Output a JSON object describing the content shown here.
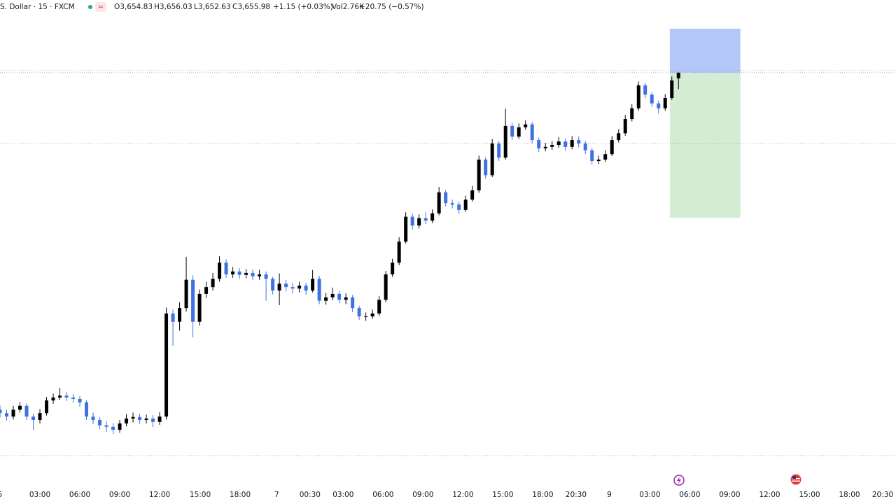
{
  "chart_data": {
    "type": "candlestick",
    "symbol": "S. Dollar · 15 · FXCM",
    "legend": {
      "open": "O3,654.83",
      "high": "H3,656.03",
      "low": "L3,652.63",
      "close": "C3,655.98",
      "change": "+1.15 (+0.03%)",
      "volume": "Vol2.76K",
      "volume_change": "+20.75 (−0.57%)"
    },
    "up_color": "#000000",
    "down_color": "#3f72e0",
    "open": [
      3587.0,
      3586.3,
      3585.6,
      3587.0,
      3587.8,
      3585.6,
      3584.9,
      3586.3,
      3588.9,
      3589.5,
      3589.9,
      3589.5,
      3589.2,
      3588.5,
      3585.6,
      3584.9,
      3583.8,
      3583.5,
      3582.9,
      3584.2,
      3585.2,
      3585.5,
      3584.9,
      3585.2,
      3584.5,
      3585.6,
      3606.7,
      3605.0,
      3607.8,
      3613.6,
      3605.0,
      3610.7,
      3612.1,
      3613.8,
      3617.1,
      3614.7,
      3615.3,
      3614.6,
      3615.0,
      3614.3,
      3614.7,
      3613.8,
      3611.4,
      3612.8,
      3612.1,
      3611.8,
      3612.4,
      3611.4,
      3613.8,
      3609.3,
      3610.0,
      3610.7,
      3609.5,
      3610.0,
      3607.8,
      3606.1,
      3606.1,
      3606.7,
      3609.5,
      3614.7,
      3617.1,
      3621.4,
      3626.5,
      3624.7,
      3626.2,
      3625.7,
      3627.2,
      3631.5,
      3629.3,
      3629.0,
      3627.9,
      3630.0,
      3631.9,
      3638.2,
      3635.0,
      3641.5,
      3638.6,
      3645.1,
      3642.9,
      3644.8,
      3645.4,
      3642.2,
      3640.5,
      3640.8,
      3641.2,
      3641.9,
      3640.8,
      3642.2,
      3641.5,
      3640.1,
      3637.9,
      3638.2,
      3639.3,
      3642.2,
      3643.6,
      3646.5,
      3648.7,
      3653.4,
      3651.5,
      3649.7,
      3648.7,
      3650.8,
      3654.83
    ],
    "high": [
      3587.9,
      3587.0,
      3587.8,
      3588.6,
      3588.3,
      3586.2,
      3587.1,
      3589.6,
      3590.3,
      3591.5,
      3590.6,
      3590.2,
      3589.8,
      3588.9,
      3586.4,
      3585.5,
      3584.6,
      3584.2,
      3584.9,
      3586.1,
      3586.4,
      3586.2,
      3586.0,
      3585.9,
      3586.5,
      3607.9,
      3607.5,
      3609.0,
      3618.3,
      3614.5,
      3611.6,
      3613.2,
      3615.0,
      3618.4,
      3617.8,
      3616.2,
      3616.0,
      3615.8,
      3615.7,
      3615.6,
      3615.3,
      3614.2,
      3614.9,
      3613.6,
      3612.9,
      3613.2,
      3613.0,
      3615.6,
      3614.4,
      3610.9,
      3612.0,
      3611.3,
      3610.8,
      3610.5,
      3608.3,
      3606.9,
      3607.5,
      3610.3,
      3615.4,
      3617.9,
      3622.3,
      3627.4,
      3627.1,
      3627.0,
      3627.4,
      3628.0,
      3632.6,
      3632.0,
      3630.0,
      3629.6,
      3630.8,
      3632.8,
      3639.0,
      3638.7,
      3642.4,
      3642.0,
      3648.6,
      3645.7,
      3645.6,
      3646.2,
      3645.9,
      3642.7,
      3641.6,
      3642.0,
      3642.8,
      3642.5,
      3643.0,
      3642.9,
      3642.0,
      3640.6,
      3639.0,
      3640.1,
      3643.0,
      3644.4,
      3647.3,
      3649.5,
      3654.2,
      3653.9,
      3652.0,
      3650.3,
      3651.6,
      3655.2,
      3656.03
    ],
    "low": [
      3585.4,
      3584.8,
      3585.0,
      3586.4,
      3584.9,
      3582.8,
      3584.2,
      3585.8,
      3588.2,
      3589.0,
      3588.8,
      3588.4,
      3587.6,
      3584.9,
      3584.0,
      3583.0,
      3582.4,
      3582.0,
      3582.3,
      3583.6,
      3584.4,
      3584.1,
      3584.2,
      3583.4,
      3583.9,
      3585.0,
      3600.1,
      3603.2,
      3607.1,
      3601.8,
      3604.2,
      3609.9,
      3611.4,
      3613.2,
      3614.0,
      3614.0,
      3613.8,
      3613.9,
      3613.5,
      3613.6,
      3609.3,
      3610.6,
      3608.4,
      3611.2,
      3610.8,
      3611.0,
      3610.5,
      3611.0,
      3608.6,
      3608.5,
      3609.4,
      3608.8,
      3608.6,
      3607.0,
      3605.4,
      3605.2,
      3605.6,
      3606.2,
      3609.0,
      3614.2,
      3616.6,
      3621.0,
      3623.9,
      3624.1,
      3625.0,
      3625.2,
      3626.8,
      3628.6,
      3628.2,
      3627.1,
      3627.5,
      3629.6,
      3631.4,
      3634.3,
      3634.6,
      3637.9,
      3638.2,
      3642.2,
      3642.4,
      3644.3,
      3641.5,
      3639.8,
      3639.9,
      3640.2,
      3640.6,
      3640.0,
      3640.3,
      3640.7,
      3639.3,
      3637.2,
      3637.3,
      3637.7,
      3638.9,
      3641.7,
      3643.1,
      3646.0,
      3648.2,
      3650.8,
      3649.0,
      3647.6,
      3648.2,
      3650.4,
      3652.63
    ],
    "close": [
      3586.3,
      3585.6,
      3587.0,
      3587.8,
      3585.6,
      3584.9,
      3586.3,
      3588.9,
      3589.5,
      3589.9,
      3589.5,
      3589.2,
      3588.5,
      3585.6,
      3584.9,
      3583.8,
      3583.5,
      3582.9,
      3584.2,
      3585.2,
      3585.5,
      3584.9,
      3585.2,
      3584.5,
      3585.6,
      3606.7,
      3605.0,
      3607.8,
      3613.6,
      3605.0,
      3610.7,
      3612.1,
      3613.8,
      3617.1,
      3614.7,
      3615.3,
      3614.6,
      3615.0,
      3614.3,
      3614.7,
      3613.8,
      3611.4,
      3612.8,
      3612.1,
      3611.8,
      3612.4,
      3611.4,
      3613.8,
      3609.3,
      3610.0,
      3610.7,
      3609.5,
      3610.0,
      3607.8,
      3606.1,
      3606.1,
      3606.7,
      3609.5,
      3614.7,
      3617.1,
      3621.4,
      3626.5,
      3624.7,
      3626.2,
      3625.7,
      3627.2,
      3631.5,
      3629.3,
      3629.0,
      3627.9,
      3630.0,
      3631.9,
      3638.2,
      3635.0,
      3641.5,
      3638.6,
      3645.1,
      3642.9,
      3644.8,
      3645.4,
      3642.2,
      3640.5,
      3640.8,
      3641.2,
      3641.9,
      3640.8,
      3642.2,
      3641.5,
      3640.1,
      3637.9,
      3638.2,
      3639.3,
      3642.2,
      3643.6,
      3646.5,
      3648.7,
      3653.4,
      3651.5,
      3649.7,
      3648.7,
      3650.8,
      3654.4,
      3655.98
    ],
    "ylim": [
      3572,
      3668
    ],
    "xlim": [
      0,
      134.7
    ],
    "xticks": [
      {
        "value": 0,
        "label": "5"
      },
      {
        "value": 6,
        "label": "03:00"
      },
      {
        "value": 12,
        "label": "06:00"
      },
      {
        "value": 18,
        "label": "09:00"
      },
      {
        "value": 24,
        "label": "12:00"
      },
      {
        "value": 30.1,
        "label": "15:00"
      },
      {
        "value": 36.1,
        "label": "18:00"
      },
      {
        "value": 41.6,
        "label": "7"
      },
      {
        "value": 46.6,
        "label": "00:30"
      },
      {
        "value": 51.6,
        "label": "03:00"
      },
      {
        "value": 57.6,
        "label": "06:00"
      },
      {
        "value": 63.6,
        "label": "09:00"
      },
      {
        "value": 69.6,
        "label": "12:00"
      },
      {
        "value": 75.6,
        "label": "15:00"
      },
      {
        "value": 81.6,
        "label": "18:00"
      },
      {
        "value": 86.6,
        "label": "20:30"
      },
      {
        "value": 91.6,
        "label": "9"
      },
      {
        "value": 97.7,
        "label": "03:00"
      },
      {
        "value": 103.7,
        "label": "06:00"
      },
      {
        "value": 109.7,
        "label": "09:00"
      },
      {
        "value": 115.7,
        "label": "12:00"
      },
      {
        "value": 121.7,
        "label": "15:00"
      },
      {
        "value": 127.7,
        "label": "18:00"
      },
      {
        "value": 132.7,
        "label": "20:30"
      }
    ],
    "price_lines": [
      3656.4,
      3655.98,
      3641.5,
      3577.6
    ],
    "position": {
      "start": 100.7,
      "end": 111.3,
      "entry": 3655.98,
      "stop": 3665.0,
      "target": 3626.3,
      "stop_color": "#b3c8f8",
      "target_color": "#d3ecd3"
    }
  }
}
